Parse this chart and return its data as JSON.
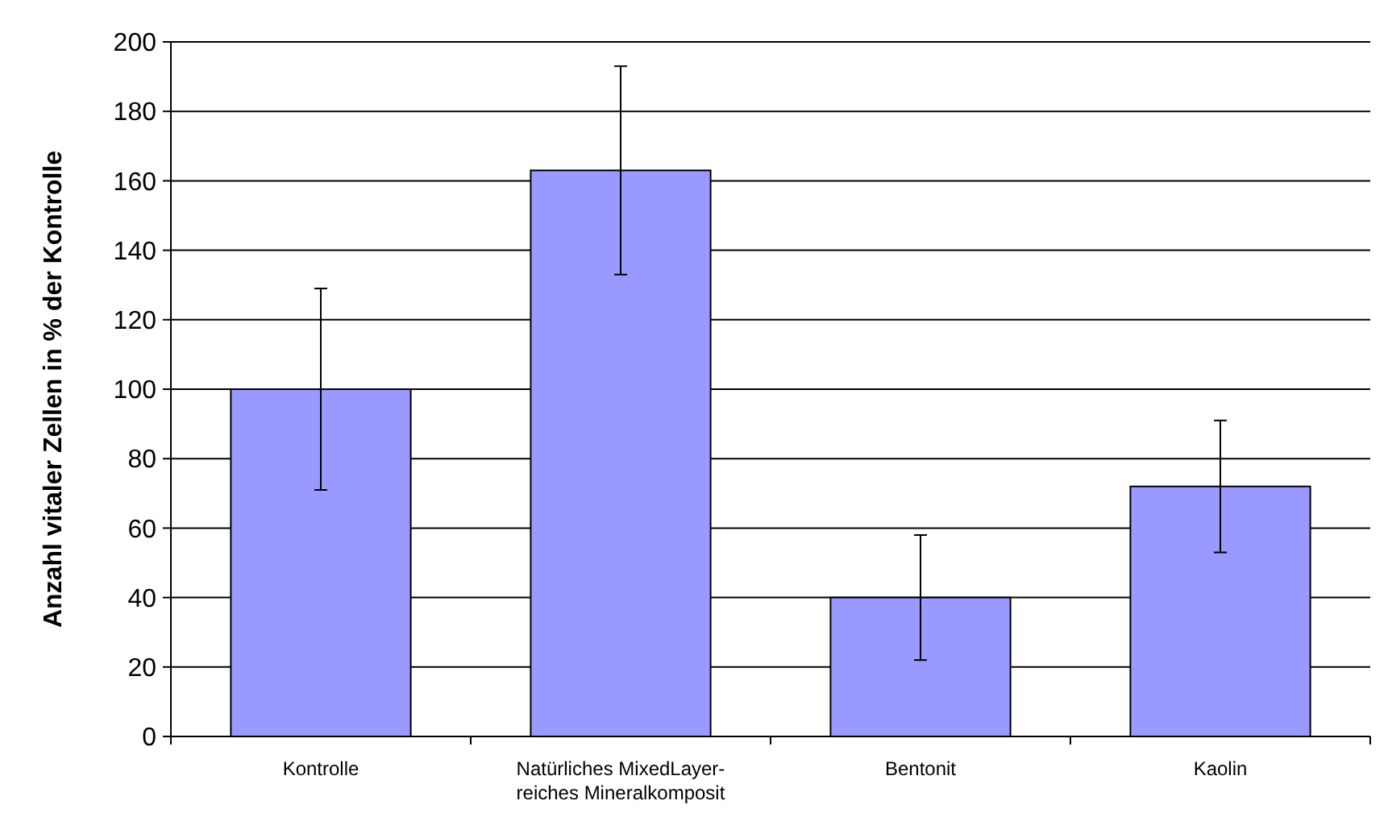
{
  "chart_data": {
    "type": "bar",
    "ylabel": "Anzahl vitaler Zellen in % der Kontrolle",
    "categories": [
      "Kontrolle",
      "Natürliches MixedLayer-reiches Mineralkomposit",
      "Bentonit",
      "Kaolin"
    ],
    "values": [
      100,
      163,
      40,
      72
    ],
    "errors": [
      29,
      30,
      18,
      19
    ],
    "color": "#9999ff",
    "ylim": [
      0,
      200
    ],
    "yticks": [
      0,
      20,
      40,
      60,
      80,
      100,
      120,
      140,
      160,
      180,
      200
    ],
    "grid": "y"
  }
}
